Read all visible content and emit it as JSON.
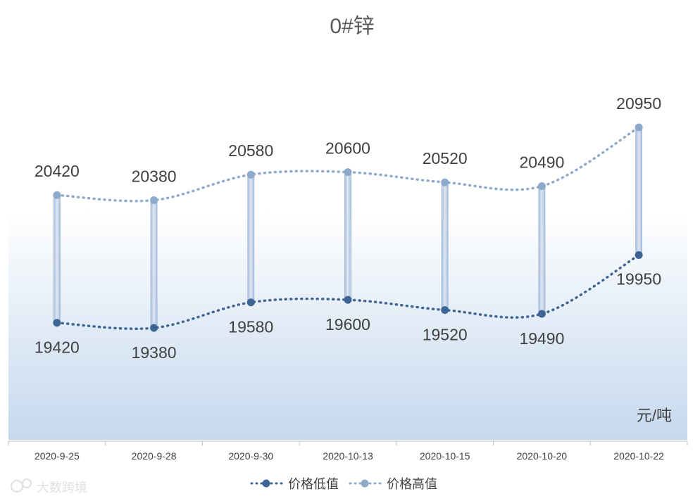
{
  "chart_data": {
    "type": "line",
    "title": "0#锌",
    "unit": "元/吨",
    "categories": [
      "2020-9-25",
      "2020-9-28",
      "2020-9-30",
      "2020-10-13",
      "2020-10-15",
      "2020-10-20",
      "2020-10-22"
    ],
    "series": [
      {
        "name": "价格低值",
        "values": [
          19420,
          19380,
          19580,
          19600,
          19520,
          19490,
          19950
        ],
        "color": "#3d6594"
      },
      {
        "name": "价格高值",
        "values": [
          20420,
          20380,
          20580,
          20600,
          20520,
          20490,
          20950
        ],
        "color": "#8eaacb"
      }
    ],
    "high_low_lines": true,
    "smooth": true,
    "legend_position": "bottom",
    "grid": false
  },
  "watermark": "大数跨境"
}
